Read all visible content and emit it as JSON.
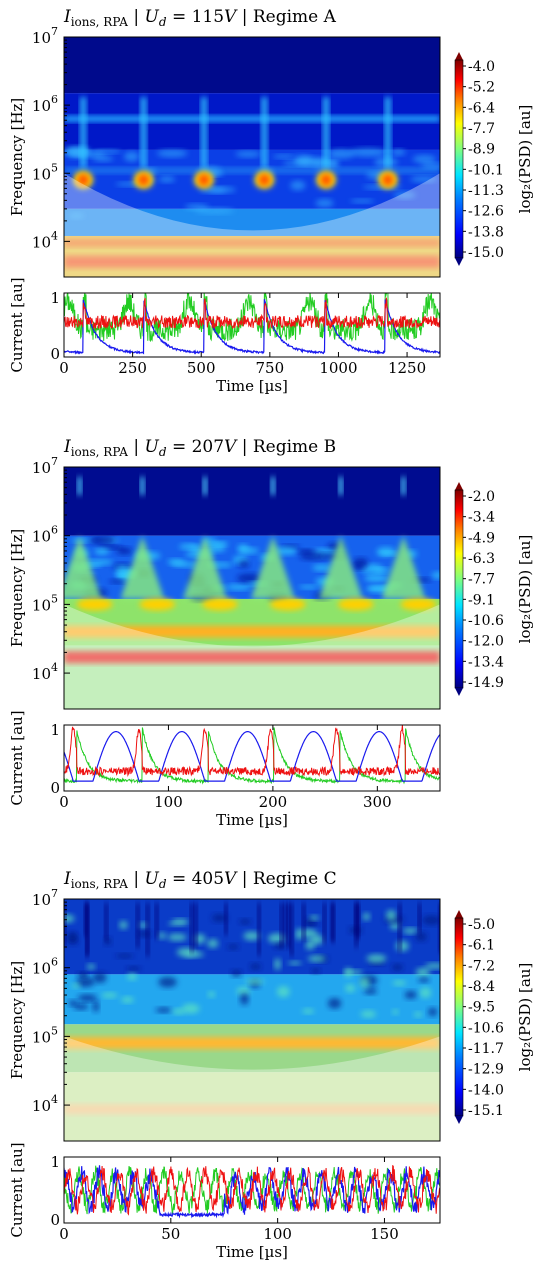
{
  "colors": {
    "spectrogram_colormap": [
      "#00007f",
      "#0000ff",
      "#007fff",
      "#00e5ff",
      "#7fff7f",
      "#ffff00",
      "#ff7f00",
      "#ff0000",
      "#7f0000"
    ],
    "coi_shading": "#ffffff",
    "trace_green": "#22cc22",
    "trace_blue": "#1a1aee",
    "trace_red": "#ee1111"
  },
  "chart_data": [
    {
      "type": "heatmap",
      "panel": "Regime A",
      "title_parts": [
        "I",
        "ions, RPA",
        " | ",
        "U",
        "d",
        " = 115",
        "V",
        " | Regime A"
      ],
      "ylabel": "Frequency [Hz]",
      "yscale": "log",
      "ylim": [
        3000,
        10000000
      ],
      "y_tick_exponents": [
        "7",
        "6",
        "5",
        "4"
      ],
      "colorbar": {
        "label": "log₂(PSD) [au]",
        "ticks": [
          "-4.0",
          "-5.2",
          "-6.4",
          "-7.7",
          "-8.9",
          "-10.1",
          "-11.3",
          "-12.6",
          "-13.8",
          "-15.0"
        ]
      },
      "bursts_time_us": [
        70,
        290,
        510,
        730,
        955,
        1180
      ],
      "burst_frequency_hz": 80000,
      "band_frequency_hz": 600000
    },
    {
      "type": "line",
      "panel": "Regime A current",
      "ylabel": "Current [au]",
      "xlabel": "Time [µs]",
      "xlim": [
        0,
        1370
      ],
      "ylim": [
        0,
        1
      ],
      "xticks": [
        "0",
        "250",
        "500",
        "750",
        "1000",
        "1250"
      ],
      "yticks": [
        "0",
        "1"
      ],
      "period_us": 220,
      "first_peak_us": 70
    },
    {
      "type": "heatmap",
      "panel": "Regime B",
      "title_parts": [
        "I",
        "ions, RPA",
        " | ",
        "U",
        "d",
        " = 207",
        "V",
        " | Regime B"
      ],
      "ylabel": "Frequency [Hz]",
      "yscale": "log",
      "ylim": [
        3000,
        10000000
      ],
      "y_tick_exponents": [
        "7",
        "6",
        "5",
        "4"
      ],
      "colorbar": {
        "label": "log₂(PSD) [au]",
        "ticks": [
          "-2.0",
          "-3.4",
          "-4.9",
          "-6.3",
          "-7.7",
          "-9.1",
          "-10.6",
          "-12.0",
          "-13.4",
          "-14.9"
        ]
      },
      "bursts_time_us": [
        15,
        75,
        135,
        200,
        265,
        325
      ],
      "burst_frequency_hz": 150000,
      "band_frequency_hz": 17000
    },
    {
      "type": "line",
      "panel": "Regime B current",
      "ylabel": "Current [au]",
      "xlabel": "Time [µs]",
      "xlim": [
        0,
        360
      ],
      "ylim": [
        0,
        1
      ],
      "xticks": [
        "0",
        "100",
        "200",
        "300"
      ],
      "yticks": [
        "0",
        "1"
      ],
      "period_us": 63,
      "first_peak_us": 12
    },
    {
      "type": "heatmap",
      "panel": "Regime C",
      "title_parts": [
        "I",
        "ions, RPA",
        " | ",
        "U",
        "d",
        " = 405",
        "V",
        " | Regime C"
      ],
      "ylabel": "Frequency [Hz]",
      "yscale": "log",
      "ylim": [
        3000,
        10000000
      ],
      "y_tick_exponents": [
        "7",
        "6",
        "5",
        "4"
      ],
      "colorbar": {
        "label": "log₂(PSD) [au]",
        "ticks": [
          "-5.0",
          "-6.1",
          "-7.2",
          "-8.4",
          "-9.5",
          "-10.6",
          "-11.7",
          "-12.9",
          "-14.0",
          "-15.1"
        ]
      },
      "bursts_time_us": [],
      "burst_frequency_hz": 80000,
      "band_frequency_hz": 80000
    },
    {
      "type": "line",
      "panel": "Regime C current",
      "ylabel": "Current [au]",
      "xlabel": "Time [µs]",
      "xlim": [
        0,
        176
      ],
      "ylim": [
        0,
        1
      ],
      "xticks": [
        "0",
        "50",
        "100",
        "150"
      ],
      "yticks": [
        "0",
        "1"
      ],
      "period_us": 8,
      "first_peak_us": 3
    }
  ]
}
